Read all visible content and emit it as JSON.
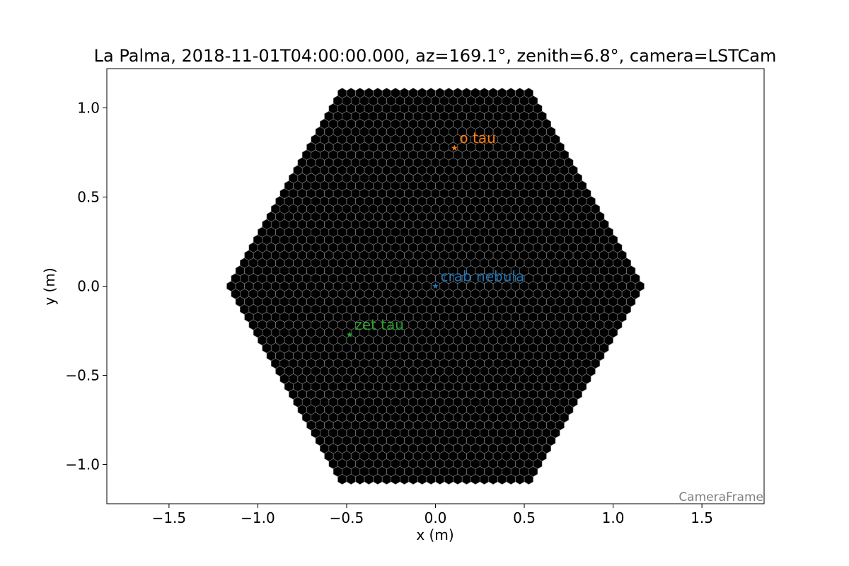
{
  "chart_data": {
    "type": "scatter",
    "title": "La Palma, 2018-11-01T04:00:00.000, az=169.1°, zenith=6.8°, camera=LSTCam",
    "xlabel": "x  (m)",
    "ylabel": "y  (m)",
    "xlim": [
      -1.85,
      1.85
    ],
    "ylim": [
      -1.22,
      1.22
    ],
    "xticks": [
      -1.5,
      -1.0,
      -0.5,
      0.0,
      0.5,
      1.0,
      1.5
    ],
    "xtick_labels": [
      "−1.5",
      "−1.0",
      "−0.5",
      "0.0",
      "0.5",
      "1.0",
      "1.5"
    ],
    "yticks": [
      -1.0,
      -0.5,
      0.0,
      0.5,
      1.0
    ],
    "ytick_labels": [
      "−1.0",
      "−0.5",
      "0.0",
      "0.5",
      "1.0"
    ],
    "grid": false,
    "camera": {
      "name": "LSTCam",
      "pixel_shape": "hexagon",
      "pixel_color": "#000000",
      "pixel_edge_color": "#8a8a8a",
      "outline_shape": "hexagon",
      "outline_orientation": "flat-top",
      "pixel_pitch": 0.05,
      "camera_half_width": 1.17,
      "camera_top": 1.09
    },
    "series": [
      {
        "name": "o tau",
        "x": [
          0.107
        ],
        "y": [
          0.775
        ],
        "marker": "star",
        "color": "#ff7f0e"
      },
      {
        "name": "crab nebula",
        "x": [
          0.0
        ],
        "y": [
          0.0
        ],
        "marker": "star",
        "color": "#1f77b4"
      },
      {
        "name": "zet tau",
        "x": [
          -0.483
        ],
        "y": [
          -0.272
        ],
        "marker": "star",
        "color": "#2ca02c"
      }
    ],
    "annotation": "CameraFrame"
  }
}
